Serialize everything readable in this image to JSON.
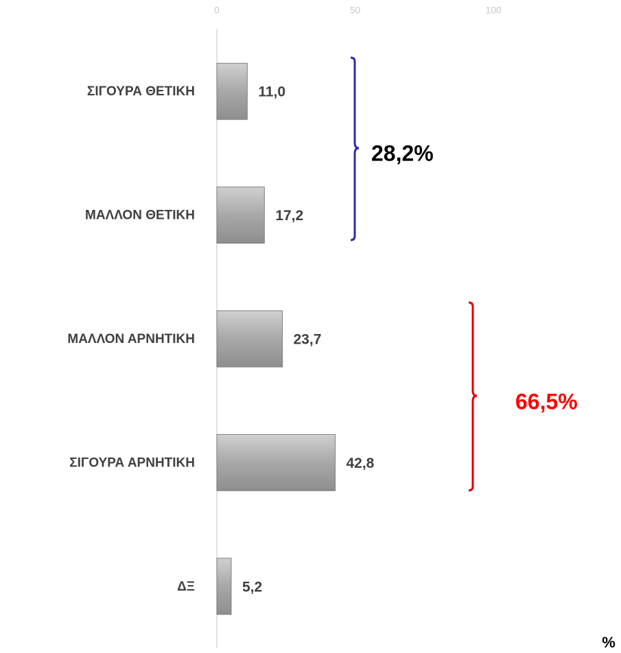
{
  "chart_data": {
    "type": "bar",
    "orientation": "horizontal",
    "categories": [
      "ΣΙΓΟΥΡΑ ΘΕΤΙΚΗ",
      "ΜΑΛΛΟΝ ΘΕΤΙΚΗ",
      "ΜΑΛΛΟΝ ΑΡΝΗΤΙΚΗ",
      "ΣΙΓΟΥΡΑ ΑΡΝΗΤΙΚΗ",
      "ΔΞ"
    ],
    "values": [
      11.0,
      17.2,
      23.7,
      42.8,
      5.2
    ],
    "value_labels": [
      "11,0",
      "17,2",
      "23,7",
      "42,8",
      "5,2"
    ],
    "color": "#a6a6a6",
    "xlim": [
      0,
      100
    ],
    "xticks": [
      0,
      50,
      100
    ],
    "annotations": [
      {
        "text": "28,2%",
        "color": "#000000"
      },
      {
        "text": "66,5%",
        "color": "#ff0000"
      }
    ],
    "unit_label": "%"
  }
}
